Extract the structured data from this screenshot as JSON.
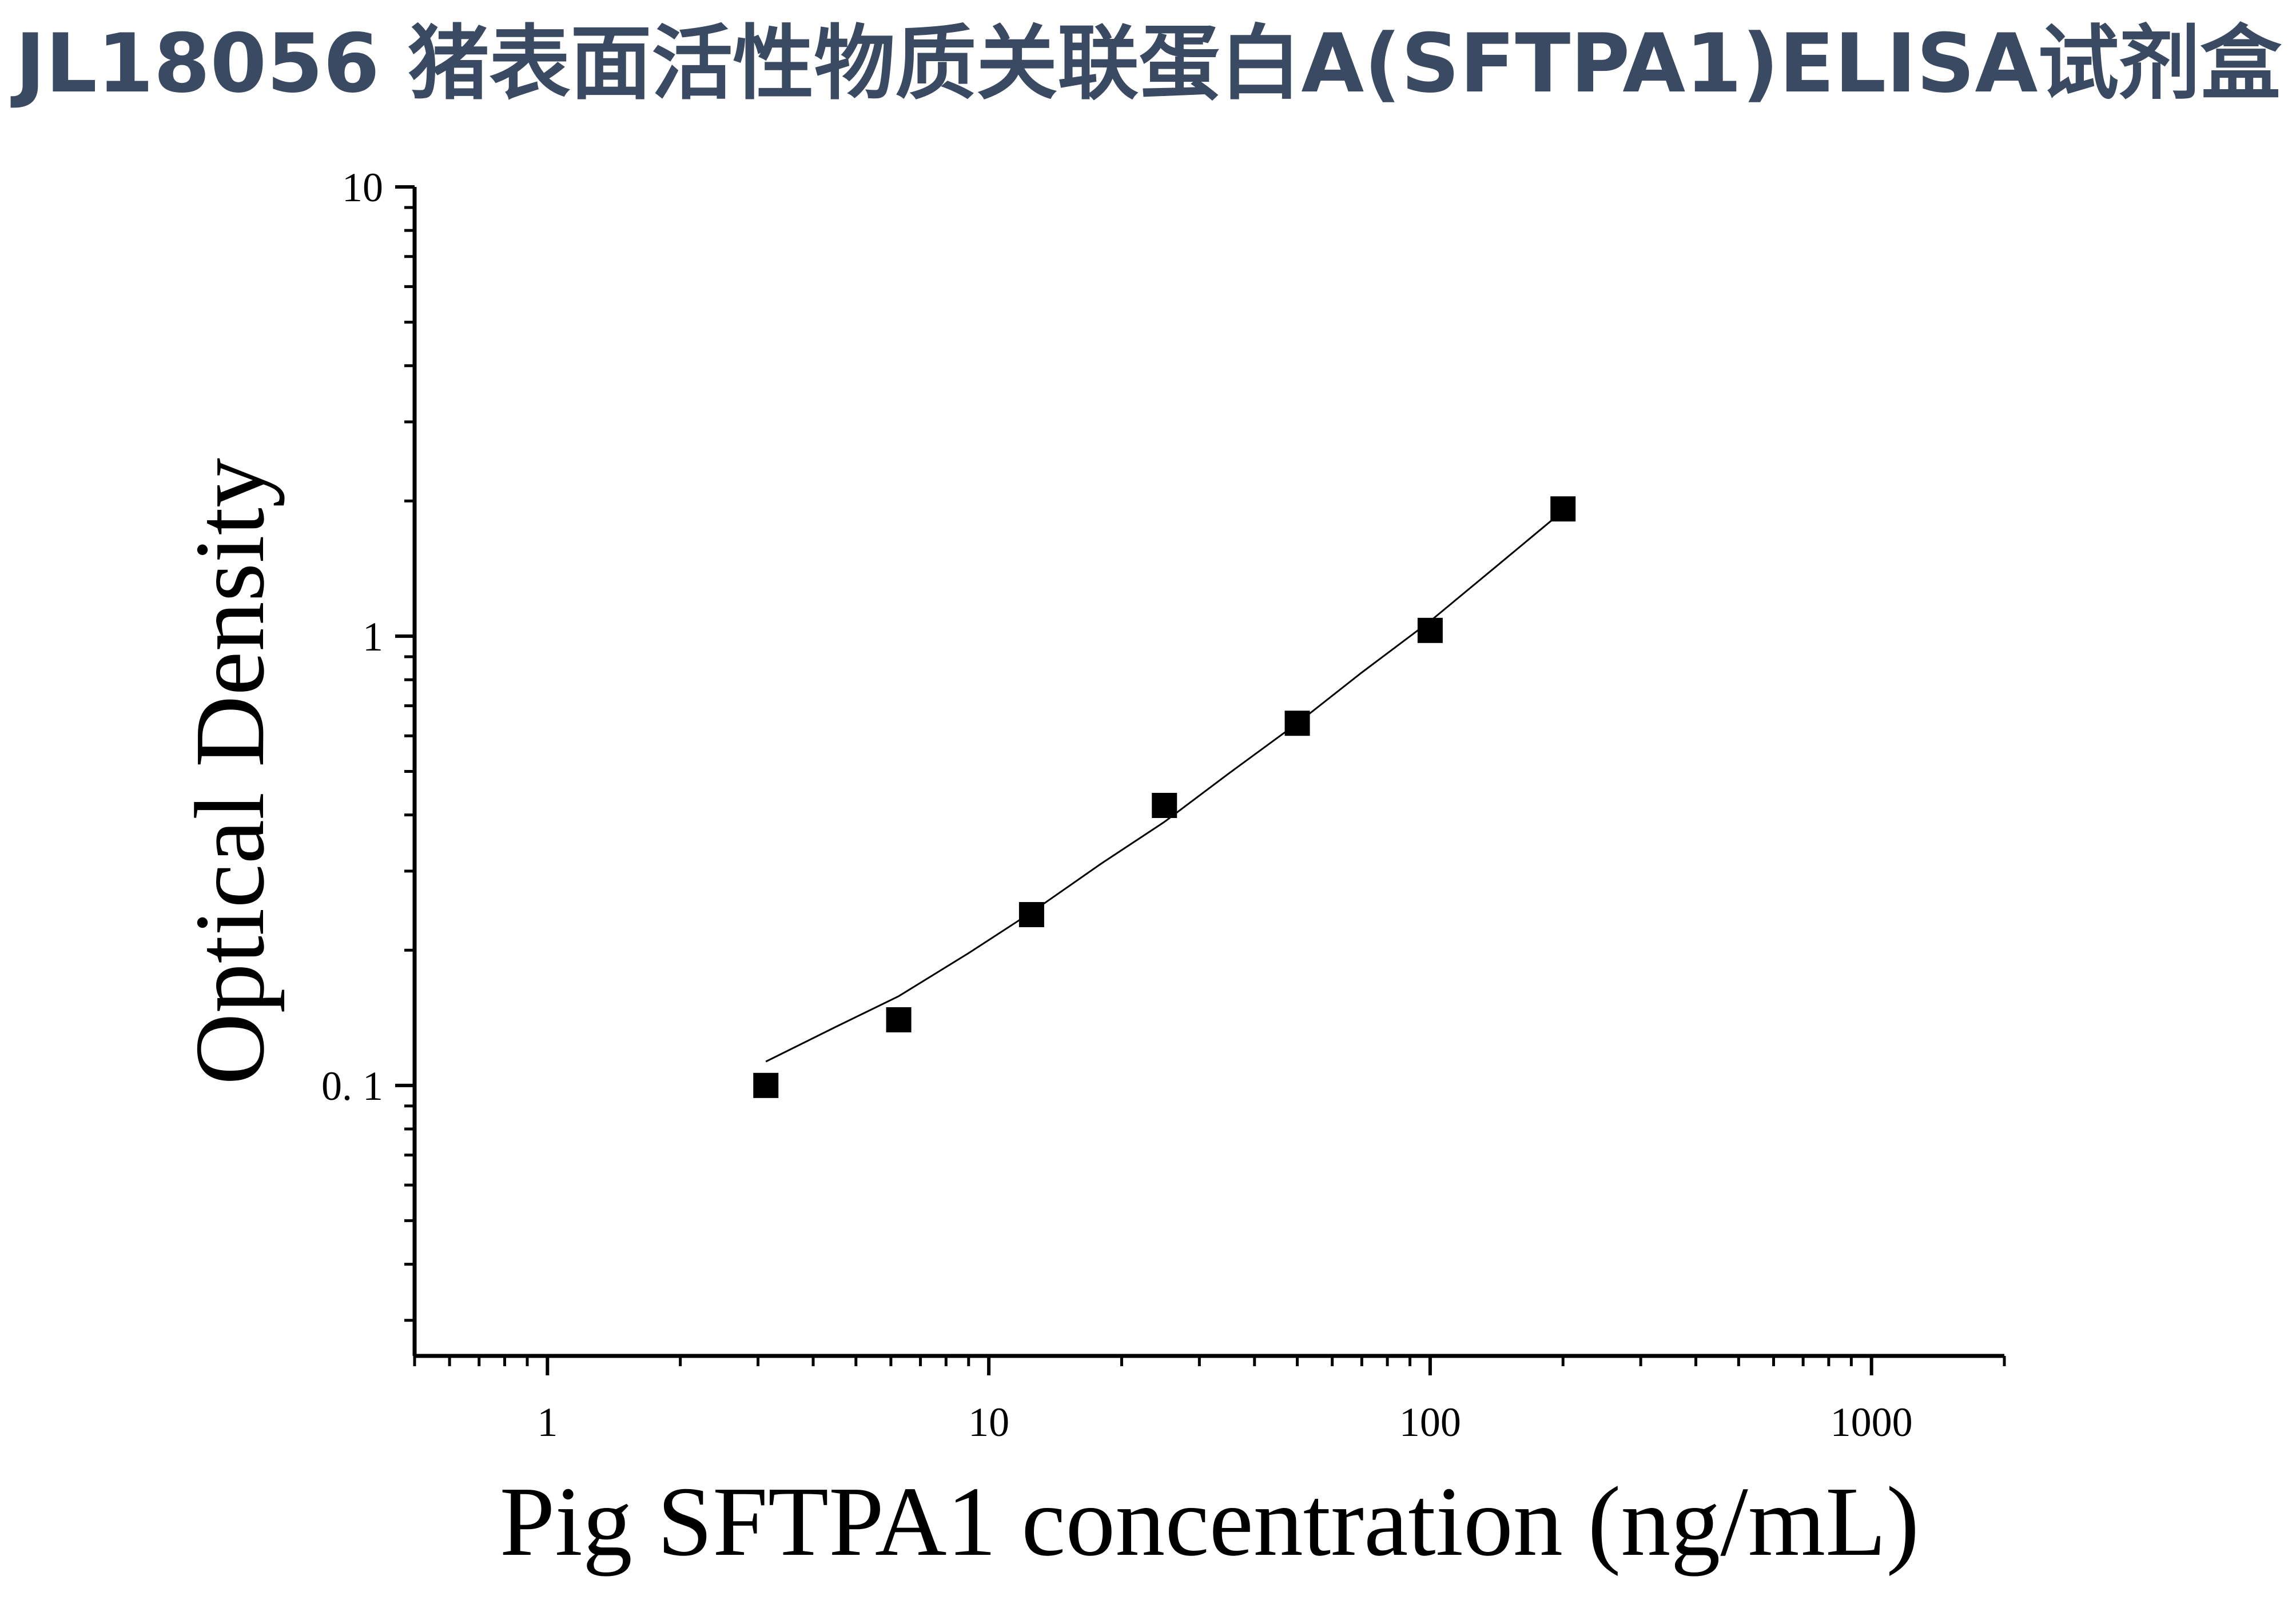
{
  "title": "JL18056 猪表面活性物质关联蛋白A(SFTPA1)ELISA试剂盒",
  "chart_data": {
    "type": "scatter",
    "title": "JL18056 猪表面活性物质关联蛋白A(SFTPA1)ELISA试剂盒",
    "xlabel": "Pig SFTPA1 concentration (ng/mL)",
    "ylabel": "Optical Density",
    "xscale": "log",
    "yscale": "log",
    "xlim": [
      0.5,
      2000
    ],
    "ylim": [
      0.025,
      10
    ],
    "x_ticks": [
      1,
      10,
      100,
      1000
    ],
    "x_tick_labels": [
      "1",
      "10",
      "100",
      "1000"
    ],
    "y_ticks": [
      0.1,
      1,
      10
    ],
    "y_tick_labels": [
      "0. 1",
      "1",
      "10"
    ],
    "grid": false,
    "marker": "square",
    "marker_color": "#000000",
    "series": [
      {
        "x": [
          3.125,
          6.25,
          12.5,
          25,
          50,
          100,
          200
        ],
        "y": [
          0.1,
          0.14,
          0.24,
          0.42,
          0.64,
          1.03,
          1.92
        ]
      }
    ],
    "fit_curve": {
      "x": [
        3.125,
        4.5,
        6.25,
        9,
        12.5,
        18,
        25,
        35,
        50,
        70,
        100,
        140,
        200
      ],
      "y": [
        0.113,
        0.135,
        0.158,
        0.197,
        0.243,
        0.312,
        0.386,
        0.495,
        0.64,
        0.83,
        1.08,
        1.42,
        1.9
      ]
    }
  }
}
